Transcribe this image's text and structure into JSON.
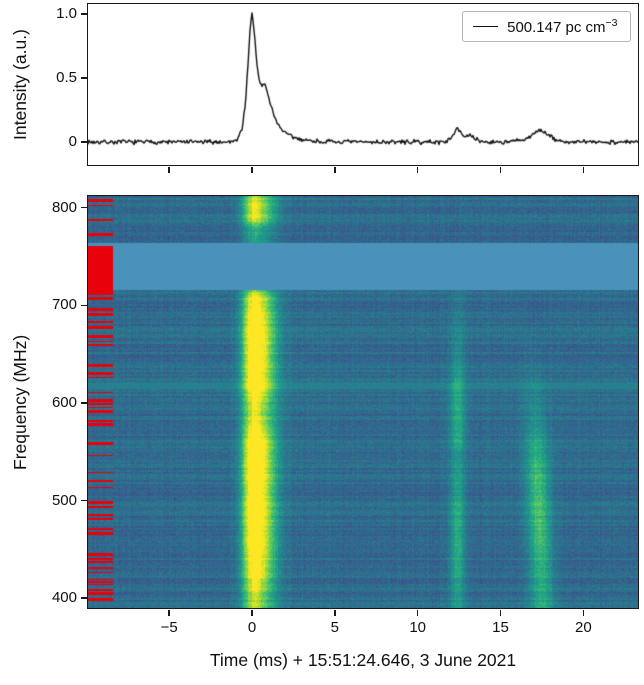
{
  "figure": {
    "background": "#ffffff",
    "spine_color": "#1a1a1a",
    "text_color": "#111111"
  },
  "chart_data": [
    {
      "type": "line",
      "title": "",
      "ylabel": "Intensity (a.u.)",
      "legend": {
        "prefix": "500.147 pc cm",
        "exponent": "−3"
      },
      "line_color": "#111111",
      "x_range": [
        -9.9,
        23.3
      ],
      "ylim": [
        -0.18,
        1.08
      ],
      "yticks": [
        {
          "v": 1.0,
          "label": "1.0"
        },
        {
          "v": 0.5,
          "label": "0.5"
        },
        {
          "v": 0.0,
          "label": "0"
        }
      ],
      "xticks": [
        -5,
        0,
        5,
        10,
        15,
        20
      ],
      "noise_amp": 0.013,
      "x": [
        -9.9,
        -1.4,
        -0.9,
        -0.6,
        -0.4,
        -0.25,
        -0.1,
        0.0,
        0.15,
        0.3,
        0.45,
        0.6,
        0.75,
        0.9,
        1.1,
        1.3,
        1.6,
        2.0,
        2.5,
        3.2,
        4.0,
        5.0,
        8.0,
        11.5,
        12.0,
        12.25,
        12.4,
        12.55,
        12.8,
        13.0,
        13.2,
        13.5,
        14.0,
        15.5,
        16.6,
        16.9,
        17.1,
        17.35,
        17.6,
        17.9,
        18.3,
        18.8,
        20.0,
        23.3
      ],
      "y": [
        0,
        0,
        0.02,
        0.1,
        0.3,
        0.6,
        0.9,
        1.0,
        0.85,
        0.6,
        0.47,
        0.44,
        0.46,
        0.4,
        0.3,
        0.22,
        0.13,
        0.07,
        0.035,
        0.015,
        0.005,
        0,
        0,
        0,
        0.02,
        0.09,
        0.12,
        0.09,
        0.04,
        0.04,
        0.05,
        0.02,
        0,
        0,
        0.02,
        0.05,
        0.08,
        0.1,
        0.08,
        0.05,
        0.02,
        0,
        0,
        0
      ]
    },
    {
      "type": "heatmap",
      "xlabel": "Time (ms) + 15:51:24.646, 3 June 2021",
      "ylabel": "Frequency (MHz)",
      "colormap": "viridis",
      "x_range": [
        -9.9,
        23.3
      ],
      "y_range": [
        400,
        800
      ],
      "flim": [
        390,
        812
      ],
      "yticks": [
        {
          "v": 800,
          "label": "800"
        },
        {
          "v": 700,
          "label": "700"
        },
        {
          "v": 600,
          "label": "600"
        },
        {
          "v": 500,
          "label": "500"
        },
        {
          "v": 400,
          "label": "400"
        }
      ],
      "xticks": [
        {
          "v": -5,
          "label": "−5"
        },
        {
          "v": 0,
          "label": "0"
        },
        {
          "v": 5,
          "label": "5"
        },
        {
          "v": 10,
          "label": "10"
        },
        {
          "v": 15,
          "label": "15"
        },
        {
          "v": 20,
          "label": "20"
        }
      ],
      "noise_base": 0.35,
      "masked_band_color": "#4a92ba",
      "rfi_color": "#e8000b",
      "features": {
        "masked_band_mhz": [
          716,
          764
        ],
        "rfi_block_mhz": [
          712,
          761
        ],
        "rfi_mask_t_end": -8.4,
        "bright_band_mhz": [
          614,
          620
        ],
        "bright_band_boost": 0.09,
        "main_burst": {
          "t0": 0.0,
          "sigma_ms": 0.45,
          "amp": 0.78,
          "tail_amp": 0.22,
          "tail_tau_ms": 1.2,
          "shoulder": {
            "t0": 0.9,
            "sigma_ms": 0.5,
            "amp": 0.55
          },
          "freq_envelope": [
            [
              400,
              0.55
            ],
            [
              425,
              0.8
            ],
            [
              460,
              0.9
            ],
            [
              520,
              0.92
            ],
            [
              560,
              0.9
            ],
            [
              592,
              0.62
            ],
            [
              615,
              0.8
            ],
            [
              650,
              0.92
            ],
            [
              685,
              0.85
            ],
            [
              708,
              0.75
            ],
            [
              716,
              0.4
            ],
            [
              764,
              0.25
            ],
            [
              778,
              0.3
            ],
            [
              790,
              0.62
            ],
            [
              800,
              0.68
            ],
            [
              812,
              0.55
            ]
          ]
        },
        "sub_burst_1": {
          "t0": 12.4,
          "sigma_ms": 0.32,
          "amp": 0.95,
          "freq_envelope": [
            [
              400,
              0.2
            ],
            [
              430,
              0.3
            ],
            [
              470,
              0.3
            ],
            [
              510,
              0.26
            ],
            [
              545,
              0.18
            ],
            [
              565,
              0.3
            ],
            [
              605,
              0.27
            ],
            [
              640,
              0.18
            ],
            [
              680,
              0.1
            ],
            [
              710,
              0.06
            ],
            [
              770,
              0.0
            ],
            [
              812,
              0.0
            ]
          ]
        },
        "sub_burst_2": {
          "t0": 17.5,
          "f_ref": 400,
          "drift_ms_per_mhz": 0.002,
          "sigma_ms": 0.5,
          "amp": 0.95,
          "freq_envelope": [
            [
              400,
              0.28
            ],
            [
              430,
              0.33
            ],
            [
              470,
              0.4
            ],
            [
              520,
              0.38
            ],
            [
              555,
              0.28
            ],
            [
              590,
              0.15
            ],
            [
              630,
              0.06
            ],
            [
              680,
              0.0
            ],
            [
              812,
              0.0
            ]
          ]
        }
      }
    }
  ]
}
